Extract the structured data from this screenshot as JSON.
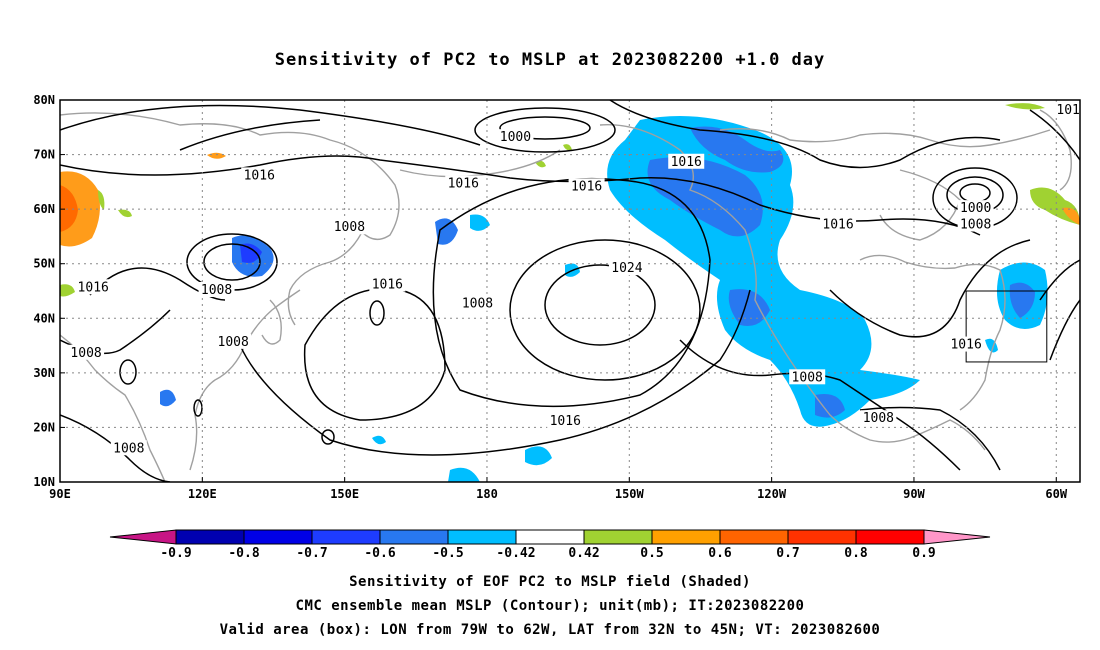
{
  "title": "Sensitivity of PC2 to MSLP at 2023082200 +1.0 day",
  "map": {
    "lat_ticks": [
      "80N",
      "70N",
      "60N",
      "50N",
      "40N",
      "30N",
      "20N",
      "10N"
    ],
    "lon_ticks": [
      "90E",
      "120E",
      "150E",
      "180",
      "150W",
      "120W",
      "90W",
      "60W"
    ],
    "lon_range": [
      90,
      305
    ],
    "lat_range": [
      10,
      80
    ],
    "grid": "dotted",
    "coastline_color": "#a0a0a0",
    "contour_color": "#000000",
    "contour_labels": [
      {
        "text": "1000",
        "lon": 186,
        "lat": 73
      },
      {
        "text": "1016",
        "lon": 222,
        "lat": 68.5
      },
      {
        "text": "1016",
        "lon": 132,
        "lat": 66
      },
      {
        "text": "1016",
        "lon": 175,
        "lat": 64.5
      },
      {
        "text": "1016",
        "lon": 201,
        "lat": 64
      },
      {
        "text": "1000",
        "lon": 283,
        "lat": 60
      },
      {
        "text": "1016",
        "lon": 254,
        "lat": 57
      },
      {
        "text": "1008",
        "lon": 283,
        "lat": 57
      },
      {
        "text": "1008",
        "lon": 151,
        "lat": 56.5
      },
      {
        "text": "1024",
        "lon": 209.5,
        "lat": 49
      },
      {
        "text": "1016",
        "lon": 97,
        "lat": 45.5
      },
      {
        "text": "1008",
        "lon": 123,
        "lat": 45
      },
      {
        "text": "1016",
        "lon": 159,
        "lat": 46
      },
      {
        "text": "1008",
        "lon": 178,
        "lat": 42.5
      },
      {
        "text": "1008",
        "lon": 126.5,
        "lat": 35.5
      },
      {
        "text": "1016",
        "lon": 281,
        "lat": 35
      },
      {
        "text": "1008",
        "lon": 95.5,
        "lat": 33.5
      },
      {
        "text": "1008",
        "lon": 247.5,
        "lat": 29
      },
      {
        "text": "1016",
        "lon": 196.5,
        "lat": 21
      },
      {
        "text": "1008",
        "lon": 262.5,
        "lat": 21.5
      },
      {
        "text": "1008",
        "lon": 104.5,
        "lat": 16
      },
      {
        "text": "101",
        "lon": 302.5,
        "lat": 78
      }
    ],
    "valid_box": {
      "lon_min": 281,
      "lon_max": 298,
      "lat_min": 32,
      "lat_max": 45
    }
  },
  "colorbar": {
    "labels": [
      "-0.9",
      "-0.8",
      "-0.7",
      "-0.6",
      "-0.5",
      "-0.42",
      "0.42",
      "0.5",
      "0.6",
      "0.7",
      "0.8",
      "0.9"
    ],
    "colors": [
      "#c71585",
      "#0000b0",
      "#0000e6",
      "#1e3cff",
      "#2878f0",
      "#00beff",
      "#ffffff",
      "#a0d232",
      "#ffa000",
      "#ff6400",
      "#ff3200",
      "#ff0000",
      "#ff96c8"
    ]
  },
  "captions": [
    "Sensitivity of EOF PC2 to MSLP field (Shaded)",
    "CMC ensemble mean MSLP (Contour); unit(mb); IT:2023082200",
    "Valid area (box): LON from 79W to 62W, LAT from 32N to 45N; VT: 2023082600"
  ]
}
